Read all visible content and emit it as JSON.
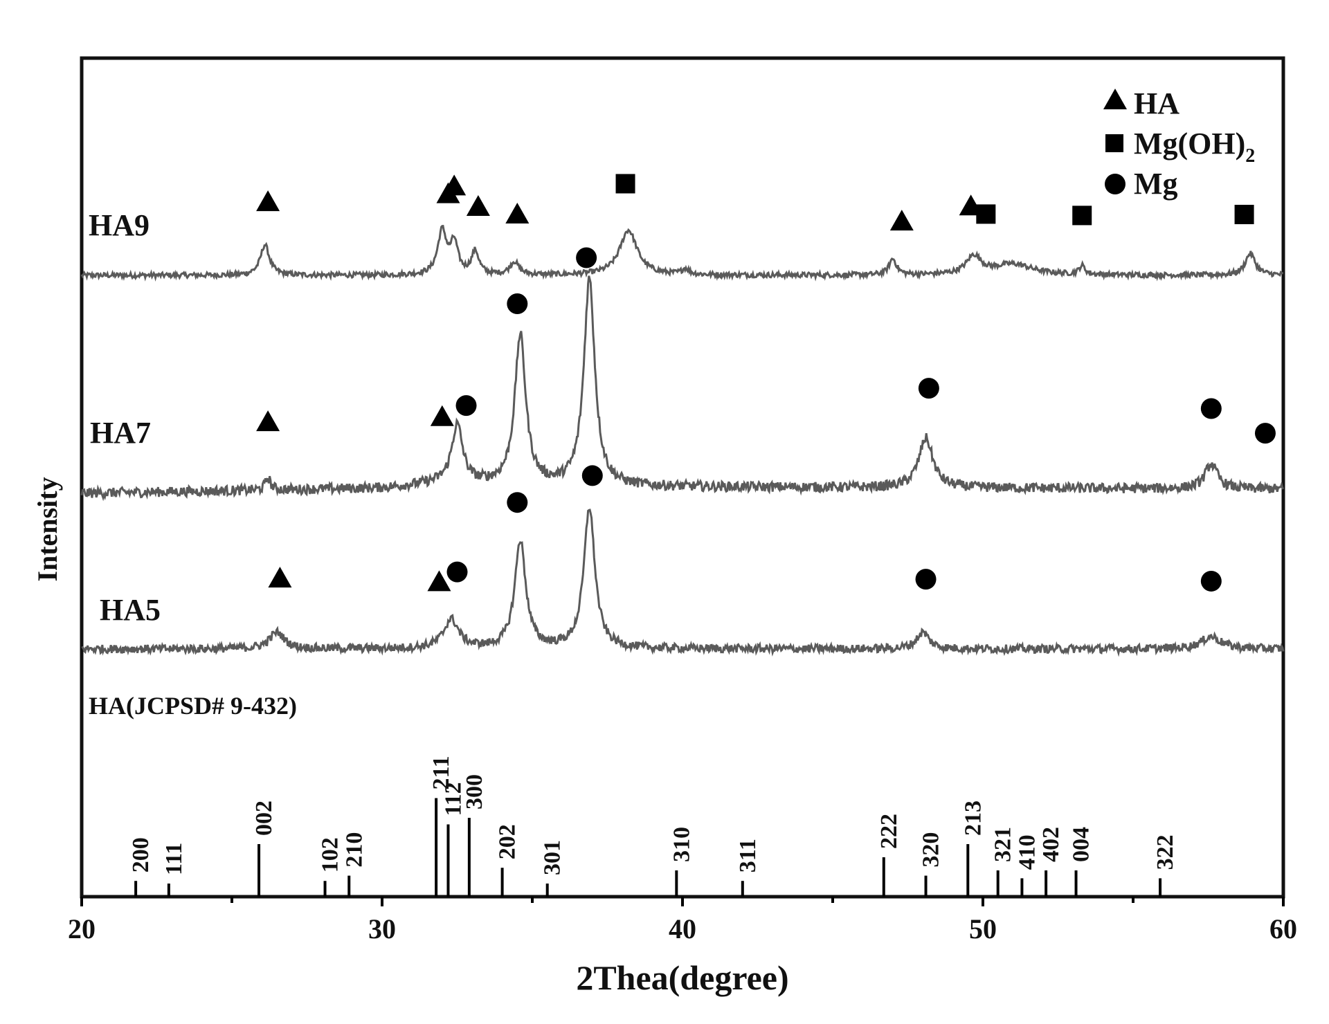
{
  "chart_data": {
    "type": "line",
    "title": "",
    "xlabel": "2Thea(degree)",
    "ylabel": "Intensity",
    "xlim": [
      20,
      60
    ],
    "xticks": [
      20,
      30,
      40,
      50,
      60
    ],
    "y_ticks_shown": false,
    "grid": false,
    "legend": {
      "placement": "top-right",
      "entries": [
        {
          "marker": "triangle",
          "label": "HA",
          "sub": ""
        },
        {
          "marker": "square",
          "label": "Mg(OH)",
          "sub": "2"
        },
        {
          "marker": "circle",
          "label": "Mg",
          "sub": ""
        }
      ]
    },
    "series": [
      {
        "name": "HA9",
        "noise": 0.035,
        "baseline": [
          [
            20,
            0.0
          ],
          [
            60,
            0.0
          ]
        ],
        "peaks": [
          {
            "x": 26.1,
            "h": 0.42,
            "w": 0.18
          },
          {
            "x": 32.0,
            "h": 0.6,
            "w": 0.18
          },
          {
            "x": 32.4,
            "h": 0.42,
            "w": 0.15
          },
          {
            "x": 33.1,
            "h": 0.32,
            "w": 0.15
          },
          {
            "x": 34.4,
            "h": 0.18,
            "w": 0.18
          },
          {
            "x": 38.2,
            "h": 0.62,
            "w": 0.35
          },
          {
            "x": 40.1,
            "h": 0.08,
            "w": 0.15
          },
          {
            "x": 47.0,
            "h": 0.22,
            "w": 0.15
          },
          {
            "x": 49.7,
            "h": 0.25,
            "w": 0.3
          },
          {
            "x": 51.0,
            "h": 0.15,
            "w": 0.8
          },
          {
            "x": 53.3,
            "h": 0.12,
            "w": 0.12
          },
          {
            "x": 58.9,
            "h": 0.3,
            "w": 0.2
          }
        ],
        "markers": [
          {
            "type": "triangle",
            "x": 26.2
          },
          {
            "type": "triangle",
            "x": 32.2
          },
          {
            "type": "triangle",
            "x": 32.4
          },
          {
            "type": "triangle",
            "x": 33.2
          },
          {
            "type": "triangle",
            "x": 34.5
          },
          {
            "type": "square",
            "x": 38.1
          },
          {
            "type": "triangle",
            "x": 47.3
          },
          {
            "type": "triangle",
            "x": 49.6
          },
          {
            "type": "square",
            "x": 50.1
          },
          {
            "type": "square",
            "x": 53.3
          },
          {
            "type": "square",
            "x": 58.7
          }
        ]
      },
      {
        "name": "HA7",
        "noise": 0.06,
        "baseline": [
          [
            20,
            0.0
          ],
          [
            30,
            0.06
          ],
          [
            32,
            0.12
          ],
          [
            36,
            0.08
          ],
          [
            60,
            0.05
          ]
        ],
        "peaks": [
          {
            "x": 26.2,
            "h": 0.15,
            "w": 0.1
          },
          {
            "x": 32.5,
            "h": 0.7,
            "w": 0.22
          },
          {
            "x": 34.6,
            "h": 1.8,
            "w": 0.22
          },
          {
            "x": 36.9,
            "h": 2.5,
            "w": 0.22
          },
          {
            "x": 48.1,
            "h": 0.6,
            "w": 0.28
          },
          {
            "x": 57.6,
            "h": 0.3,
            "w": 0.25
          }
        ],
        "markers": [
          {
            "type": "triangle",
            "x": 26.2
          },
          {
            "type": "triangle",
            "x": 32.0
          },
          {
            "type": "circle",
            "x": 32.8
          },
          {
            "type": "circle",
            "x": 34.5
          },
          {
            "type": "circle",
            "x": 36.8
          },
          {
            "type": "circle",
            "x": 48.2
          },
          {
            "type": "circle",
            "x": 57.6
          },
          {
            "type": "circle",
            "x": 59.4
          }
        ]
      },
      {
        "name": "HA5",
        "noise": 0.05,
        "baseline": [
          [
            20,
            0.0
          ],
          [
            60,
            0.0
          ]
        ],
        "peaks": [
          {
            "x": 26.5,
            "h": 0.2,
            "w": 0.3
          },
          {
            "x": 32.3,
            "h": 0.35,
            "w": 0.3
          },
          {
            "x": 34.6,
            "h": 1.3,
            "w": 0.22
          },
          {
            "x": 36.9,
            "h": 1.7,
            "w": 0.22
          },
          {
            "x": 48.0,
            "h": 0.2,
            "w": 0.25
          },
          {
            "x": 57.6,
            "h": 0.15,
            "w": 0.4
          }
        ],
        "markers": [
          {
            "type": "triangle",
            "x": 26.6
          },
          {
            "type": "triangle",
            "x": 31.9
          },
          {
            "type": "circle",
            "x": 32.5
          },
          {
            "type": "circle",
            "x": 34.5
          },
          {
            "type": "circle",
            "x": 37.0
          },
          {
            "type": "circle",
            "x": 48.1
          },
          {
            "type": "circle",
            "x": 57.6
          }
        ]
      }
    ],
    "reference": {
      "name": "HA(JCPSD# 9-432)",
      "lines": [
        {
          "x": 21.8,
          "hkl": "200",
          "i": 0.12
        },
        {
          "x": 22.9,
          "hkl": "111",
          "i": 0.1
        },
        {
          "x": 25.9,
          "hkl": "002",
          "i": 0.4
        },
        {
          "x": 28.1,
          "hkl": "102",
          "i": 0.12
        },
        {
          "x": 28.9,
          "hkl": "210",
          "i": 0.16
        },
        {
          "x": 31.8,
          "hkl": "211",
          "i": 0.75
        },
        {
          "x": 32.2,
          "hkl": "112",
          "i": 0.55
        },
        {
          "x": 32.9,
          "hkl": "300",
          "i": 0.6
        },
        {
          "x": 34.0,
          "hkl": "202",
          "i": 0.22
        },
        {
          "x": 35.5,
          "hkl": "301",
          "i": 0.1
        },
        {
          "x": 39.8,
          "hkl": "310",
          "i": 0.2
        },
        {
          "x": 42.0,
          "hkl": "311",
          "i": 0.12
        },
        {
          "x": 46.7,
          "hkl": "222",
          "i": 0.3
        },
        {
          "x": 48.1,
          "hkl": "320",
          "i": 0.16
        },
        {
          "x": 49.5,
          "hkl": "213",
          "i": 0.4
        },
        {
          "x": 50.5,
          "hkl": "321",
          "i": 0.2
        },
        {
          "x": 51.3,
          "hkl": "410",
          "i": 0.14
        },
        {
          "x": 52.1,
          "hkl": "402",
          "i": 0.2
        },
        {
          "x": 53.1,
          "hkl": "004",
          "i": 0.2
        },
        {
          "x": 55.9,
          "hkl": "322",
          "i": 0.14
        }
      ]
    }
  }
}
